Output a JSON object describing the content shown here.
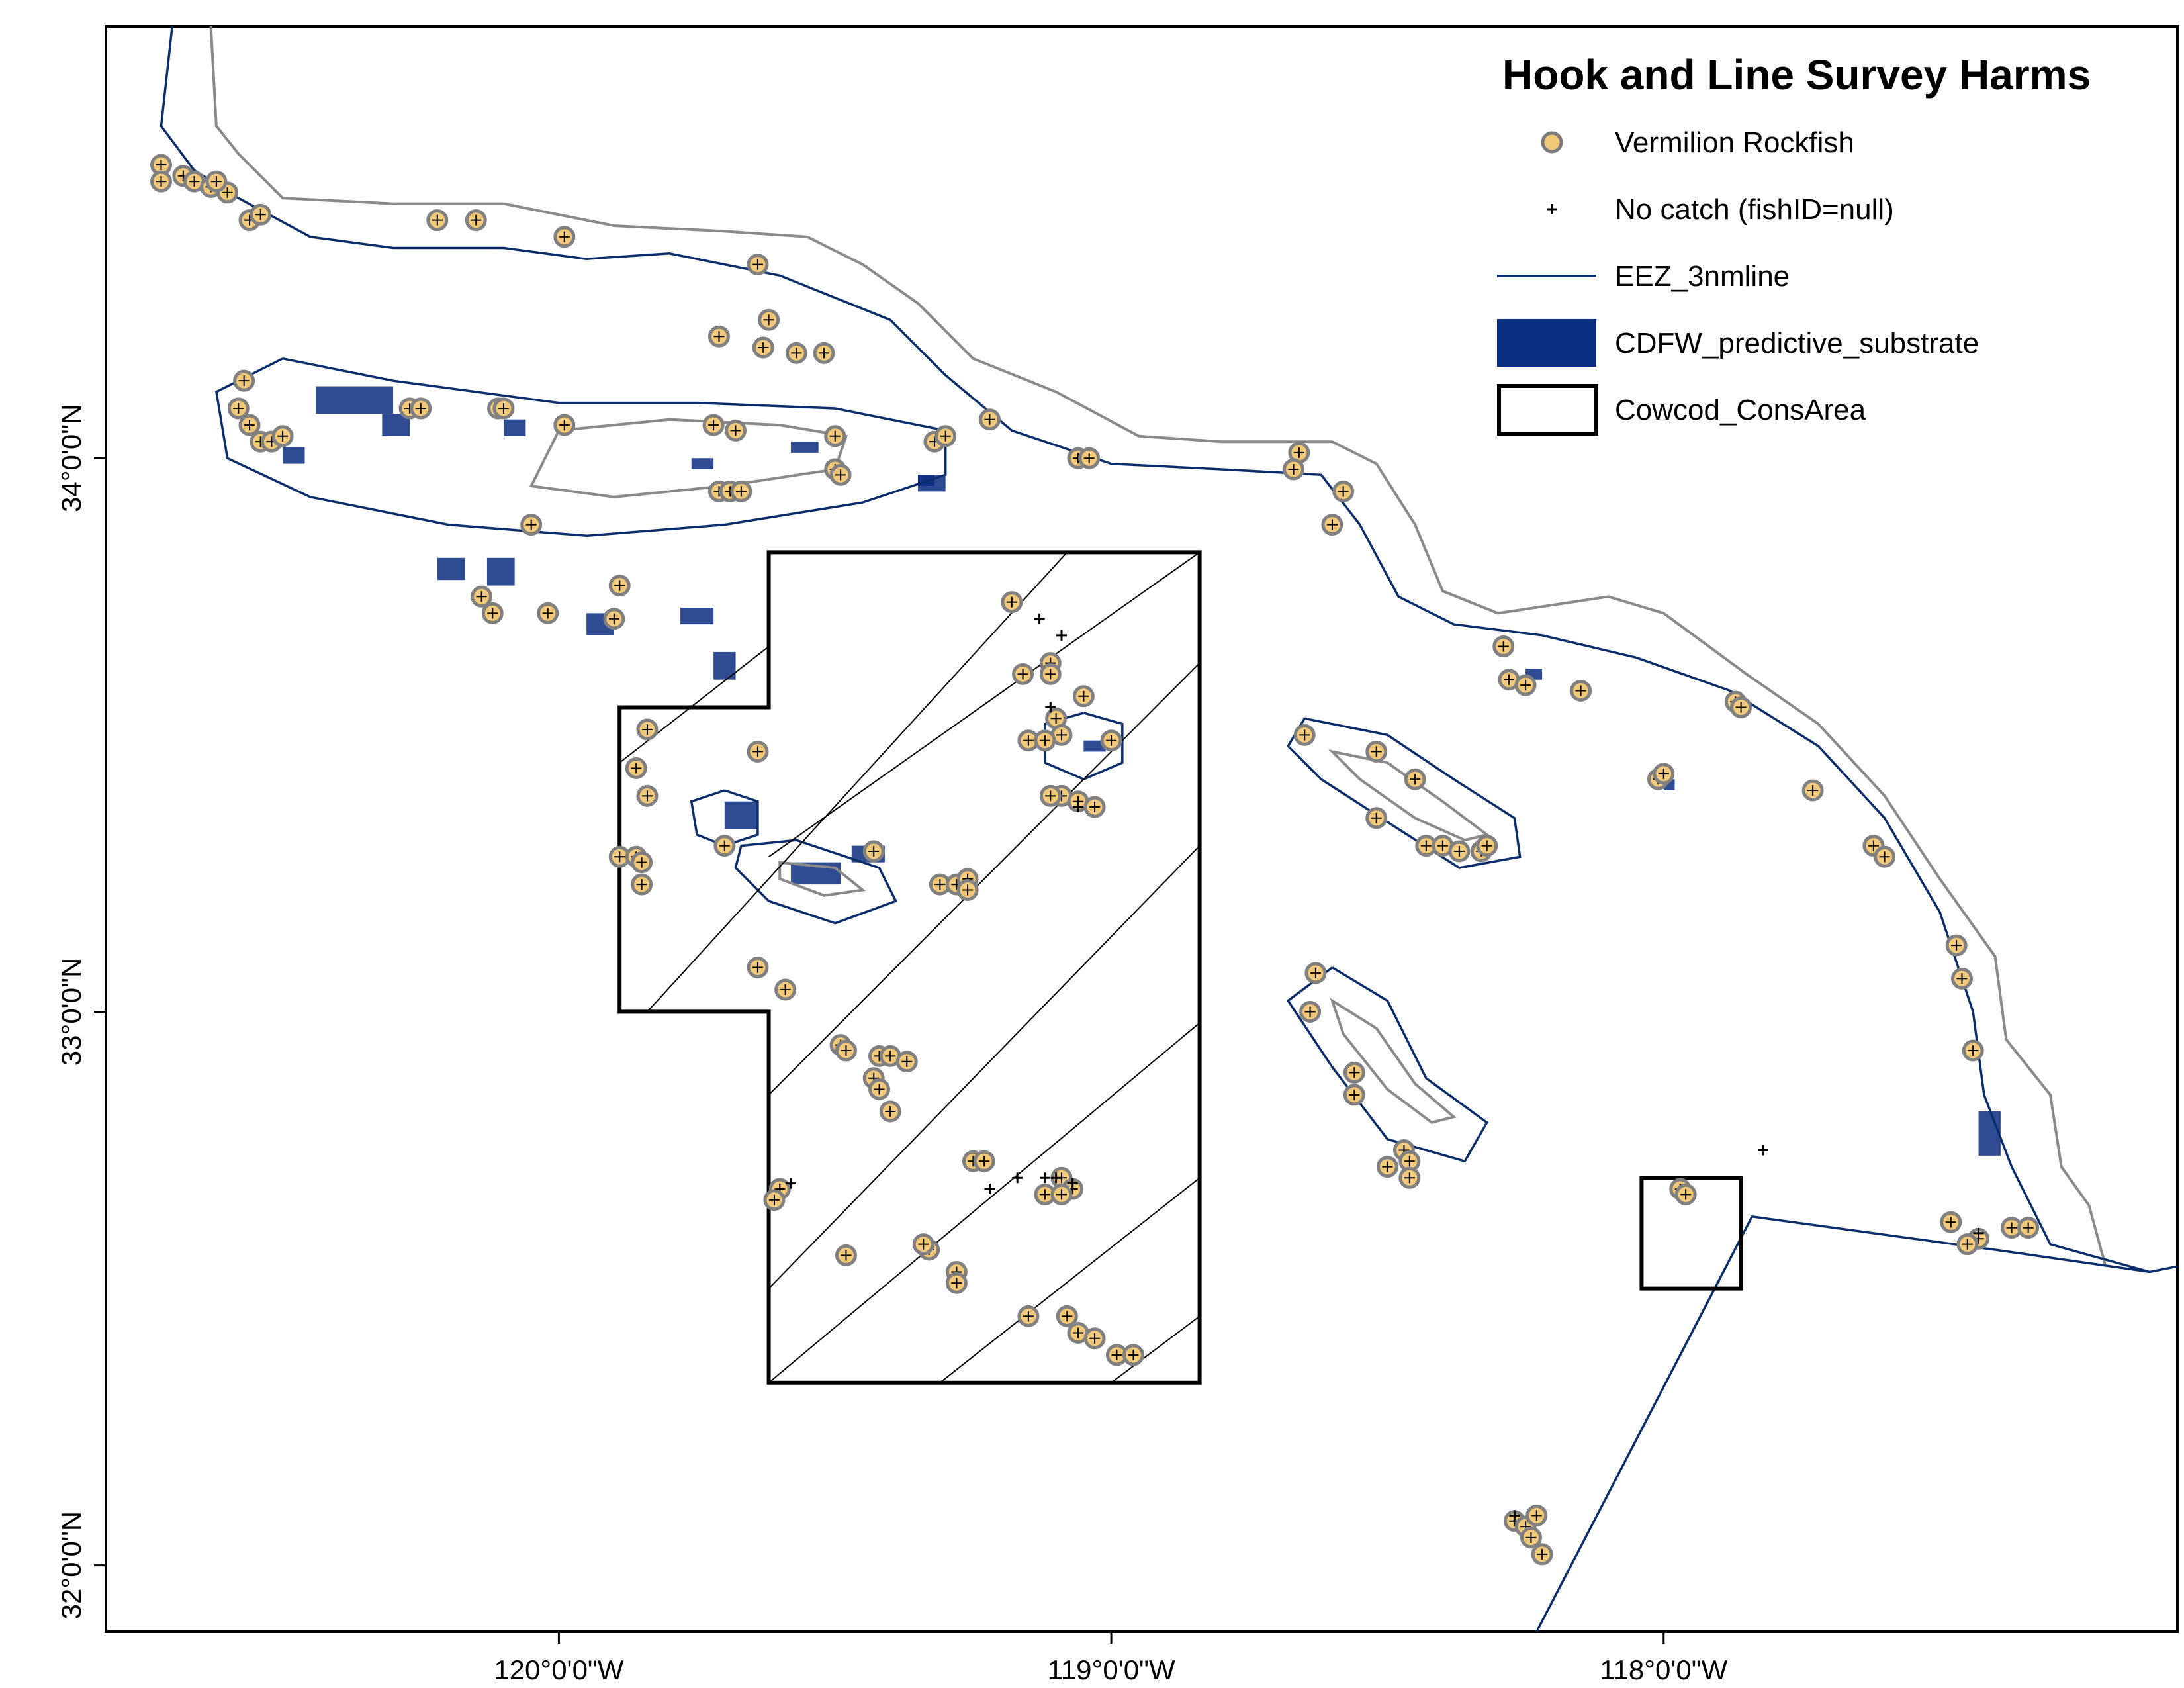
{
  "legend": {
    "title": "Hook and Line Survey Harms",
    "items": [
      {
        "symbol": "circle-marker-icon",
        "label": "Vermilion Rockfish",
        "color": "#F2C879",
        "stroke": "#7a7a7a"
      },
      {
        "symbol": "plus-marker-icon",
        "label": "No catch  (fishID=null)",
        "color": "#000000"
      },
      {
        "symbol": "line-icon",
        "label": "EEZ_3nmline",
        "color": "#0b2d6b"
      },
      {
        "symbol": "filled-rect-icon",
        "label": "CDFW_predictive_substrate",
        "color": "#0b2d80"
      },
      {
        "symbol": "outline-rect-icon",
        "label": "Cowcod_ConsArea",
        "color": "#000000"
      }
    ]
  },
  "axes": {
    "x_ticks": [
      {
        "label": "120°0'0\"W",
        "lon": -120
      },
      {
        "label": "119°0'0\"W",
        "lon": -119
      },
      {
        "label": "118°0'0\"W",
        "lon": -118
      }
    ],
    "y_ticks": [
      {
        "label": "34°0'0\"N",
        "lat": 34
      },
      {
        "label": "33°0'0\"N",
        "lat": 33
      },
      {
        "label": "32°0'0\"N",
        "lat": 32
      }
    ],
    "lon_range": [
      -120.82,
      -117.07
    ],
    "lat_range": [
      31.88,
      34.78
    ]
  },
  "colors": {
    "eez_line": "#0b2d6b",
    "coast_line": "#8a8a8a",
    "substrate": "#0b2d80",
    "cowcod": "#000000",
    "marker_fill": "#F2C879",
    "marker_stroke": "#808080"
  },
  "vermilion_points": [
    [
      -120.72,
      34.53
    ],
    [
      -120.72,
      34.5
    ],
    [
      -120.68,
      34.51
    ],
    [
      -120.66,
      34.5
    ],
    [
      -120.63,
      34.49
    ],
    [
      -120.6,
      34.48
    ],
    [
      -120.62,
      34.5
    ],
    [
      -120.56,
      34.43
    ],
    [
      -120.54,
      34.44
    ],
    [
      -120.22,
      34.43
    ],
    [
      -120.15,
      34.43
    ],
    [
      -119.99,
      34.4
    ],
    [
      -119.64,
      34.35
    ],
    [
      -119.62,
      34.25
    ],
    [
      -119.71,
      34.22
    ],
    [
      -119.57,
      34.19
    ],
    [
      -119.52,
      34.19
    ],
    [
      -119.63,
      34.2
    ],
    [
      -120.57,
      34.14
    ],
    [
      -120.58,
      34.09
    ],
    [
      -120.56,
      34.06
    ],
    [
      -120.54,
      34.03
    ],
    [
      -120.52,
      34.03
    ],
    [
      -120.5,
      34.04
    ],
    [
      -120.27,
      34.09
    ],
    [
      -120.25,
      34.09
    ],
    [
      -120.11,
      34.09
    ],
    [
      -120.1,
      34.09
    ],
    [
      -119.99,
      34.06
    ],
    [
      -119.72,
      34.06
    ],
    [
      -119.68,
      34.05
    ],
    [
      -119.5,
      34.04
    ],
    [
      -119.5,
      33.98
    ],
    [
      -119.49,
      33.97
    ],
    [
      -119.32,
      34.03
    ],
    [
      -119.3,
      34.04
    ],
    [
      -119.22,
      34.07
    ],
    [
      -119.06,
      34.0
    ],
    [
      -119.04,
      34.0
    ],
    [
      -118.66,
      34.01
    ],
    [
      -118.67,
      33.98
    ],
    [
      -118.58,
      33.94
    ],
    [
      -118.6,
      33.88
    ],
    [
      -119.71,
      33.94
    ],
    [
      -119.69,
      33.94
    ],
    [
      -119.67,
      33.94
    ],
    [
      -120.05,
      33.88
    ],
    [
      -120.14,
      33.75
    ],
    [
      -120.12,
      33.72
    ],
    [
      -120.02,
      33.72
    ],
    [
      -119.9,
      33.71
    ],
    [
      -119.89,
      33.77
    ],
    [
      -119.18,
      33.74
    ],
    [
      -119.11,
      33.63
    ],
    [
      -119.11,
      33.61
    ],
    [
      -119.16,
      33.61
    ],
    [
      -119.05,
      33.57
    ],
    [
      -119.1,
      33.53
    ],
    [
      -119.09,
      33.5
    ],
    [
      -119.15,
      33.49
    ],
    [
      -119.12,
      33.49
    ],
    [
      -119.0,
      33.49
    ],
    [
      -119.09,
      33.39
    ],
    [
      -119.06,
      33.38
    ],
    [
      -119.03,
      33.37
    ],
    [
      -119.11,
      33.39
    ],
    [
      -119.64,
      33.47
    ],
    [
      -119.84,
      33.51
    ],
    [
      -119.86,
      33.44
    ],
    [
      -119.84,
      33.39
    ],
    [
      -119.89,
      33.28
    ],
    [
      -119.86,
      33.28
    ],
    [
      -119.85,
      33.27
    ],
    [
      -119.85,
      33.23
    ],
    [
      -119.7,
      33.3
    ],
    [
      -119.43,
      33.29
    ],
    [
      -119.31,
      33.23
    ],
    [
      -119.28,
      33.23
    ],
    [
      -119.26,
      33.24
    ],
    [
      -119.26,
      33.22
    ],
    [
      -119.64,
      33.08
    ],
    [
      -119.59,
      33.04
    ],
    [
      -119.49,
      32.94
    ],
    [
      -119.48,
      32.93
    ],
    [
      -119.42,
      32.92
    ],
    [
      -119.43,
      32.88
    ],
    [
      -119.42,
      32.86
    ],
    [
      -119.4,
      32.92
    ],
    [
      -119.37,
      32.91
    ],
    [
      -119.4,
      32.82
    ],
    [
      -119.25,
      32.73
    ],
    [
      -119.23,
      32.73
    ],
    [
      -119.09,
      32.7
    ],
    [
      -119.07,
      32.68
    ],
    [
      -119.12,
      32.67
    ],
    [
      -119.09,
      32.67
    ],
    [
      -119.6,
      32.68
    ],
    [
      -119.61,
      32.66
    ],
    [
      -119.48,
      32.56
    ],
    [
      -119.33,
      32.57
    ],
    [
      -119.34,
      32.58
    ],
    [
      -119.28,
      32.53
    ],
    [
      -119.28,
      32.51
    ],
    [
      -119.15,
      32.45
    ],
    [
      -119.08,
      32.45
    ],
    [
      -119.06,
      32.42
    ],
    [
      -119.03,
      32.41
    ],
    [
      -118.99,
      32.38
    ],
    [
      -118.96,
      32.38
    ],
    [
      -118.65,
      33.5
    ],
    [
      -118.52,
      33.47
    ],
    [
      -118.45,
      33.42
    ],
    [
      -118.52,
      33.35
    ],
    [
      -118.43,
      33.3
    ],
    [
      -118.4,
      33.3
    ],
    [
      -118.37,
      33.29
    ],
    [
      -118.33,
      33.29
    ],
    [
      -118.32,
      33.3
    ],
    [
      -118.63,
      33.07
    ],
    [
      -118.64,
      33.0
    ],
    [
      -118.56,
      32.89
    ],
    [
      -118.56,
      32.85
    ],
    [
      -118.47,
      32.75
    ],
    [
      -118.46,
      32.73
    ],
    [
      -118.46,
      32.7
    ],
    [
      -118.5,
      32.72
    ],
    [
      -118.29,
      33.66
    ],
    [
      -118.28,
      33.6
    ],
    [
      -118.25,
      33.59
    ],
    [
      -118.15,
      33.58
    ],
    [
      -118.01,
      33.42
    ],
    [
      -118.0,
      33.43
    ],
    [
      -117.87,
      33.56
    ],
    [
      -117.86,
      33.55
    ],
    [
      -117.73,
      33.4
    ],
    [
      -117.62,
      33.3
    ],
    [
      -117.6,
      33.28
    ],
    [
      -117.47,
      33.12
    ],
    [
      -117.46,
      33.06
    ],
    [
      -117.44,
      32.93
    ],
    [
      -117.97,
      32.68
    ],
    [
      -117.96,
      32.67
    ],
    [
      -117.48,
      32.62
    ],
    [
      -117.43,
      32.59
    ],
    [
      -117.45,
      32.58
    ],
    [
      -117.37,
      32.61
    ],
    [
      -117.34,
      32.61
    ],
    [
      -118.27,
      32.08
    ],
    [
      -118.25,
      32.07
    ],
    [
      -118.23,
      32.09
    ],
    [
      -118.24,
      32.05
    ],
    [
      -118.22,
      32.02
    ]
  ],
  "nocatch_points": [
    [
      -119.13,
      33.71
    ],
    [
      -119.09,
      33.68
    ],
    [
      -119.11,
      33.55
    ],
    [
      -119.22,
      32.68
    ],
    [
      -119.17,
      32.7
    ],
    [
      -119.12,
      32.7
    ],
    [
      -119.1,
      32.7
    ],
    [
      -119.07,
      32.69
    ],
    [
      -117.82,
      32.75
    ],
    [
      -119.58,
      32.69
    ],
    [
      -119.06,
      33.37
    ],
    [
      -118.27,
      32.09
    ],
    [
      -117.43,
      32.6
    ]
  ],
  "cowcod_polygons": [
    [
      [
        -119.62,
        33.83
      ],
      [
        -118.84,
        33.83
      ],
      [
        -118.84,
        32.33
      ],
      [
        -119.62,
        32.33
      ],
      [
        -119.62,
        33.0
      ],
      [
        -119.89,
        33.0
      ],
      [
        -119.89,
        33.55
      ],
      [
        -119.62,
        33.55
      ]
    ],
    [
      [
        -118.04,
        32.7
      ],
      [
        -117.86,
        32.7
      ],
      [
        -117.86,
        32.5
      ],
      [
        -118.04,
        32.5
      ]
    ]
  ],
  "eez_paths": {
    "mainland": [
      [
        -120.7,
        34.78
      ],
      [
        -120.72,
        34.6
      ],
      [
        -120.66,
        34.52
      ],
      [
        -120.58,
        34.47
      ],
      [
        -120.45,
        34.4
      ],
      [
        -120.3,
        34.38
      ],
      [
        -120.1,
        34.38
      ],
      [
        -119.95,
        34.36
      ],
      [
        -119.8,
        34.37
      ],
      [
        -119.6,
        34.33
      ],
      [
        -119.4,
        34.25
      ],
      [
        -119.3,
        34.15
      ],
      [
        -119.18,
        34.05
      ],
      [
        -119.0,
        33.99
      ],
      [
        -118.8,
        33.98
      ],
      [
        -118.62,
        33.97
      ],
      [
        -118.55,
        33.88
      ],
      [
        -118.48,
        33.75
      ],
      [
        -118.38,
        33.7
      ],
      [
        -118.22,
        33.68
      ],
      [
        -118.05,
        33.64
      ],
      [
        -117.88,
        33.58
      ],
      [
        -117.72,
        33.48
      ],
      [
        -117.6,
        33.35
      ],
      [
        -117.5,
        33.18
      ],
      [
        -117.44,
        33.0
      ],
      [
        -117.42,
        32.85
      ],
      [
        -117.37,
        32.72
      ],
      [
        -117.3,
        32.58
      ],
      [
        -117.12,
        32.53
      ]
    ],
    "boundary": [
      [
        -118.23,
        31.88
      ],
      [
        -117.84,
        32.63
      ],
      [
        -117.4,
        32.57
      ],
      [
        -117.12,
        32.53
      ],
      [
        -117.07,
        32.54
      ]
    ],
    "northern_islands": [
      [
        -120.5,
        34.18
      ],
      [
        -120.3,
        34.14
      ],
      [
        -120.0,
        34.1
      ],
      [
        -119.75,
        34.1
      ],
      [
        -119.5,
        34.09
      ],
      [
        -119.3,
        34.05
      ],
      [
        -119.3,
        33.97
      ],
      [
        -119.45,
        33.92
      ],
      [
        -119.7,
        33.88
      ],
      [
        -119.95,
        33.86
      ],
      [
        -120.2,
        33.88
      ],
      [
        -120.45,
        33.93
      ],
      [
        -120.6,
        34.0
      ],
      [
        -120.62,
        34.12
      ],
      [
        -120.5,
        34.18
      ]
    ],
    "santa_barbara_island": [
      [
        -119.05,
        33.54
      ],
      [
        -118.98,
        33.52
      ],
      [
        -118.98,
        33.45
      ],
      [
        -119.05,
        33.42
      ],
      [
        -119.12,
        33.45
      ],
      [
        -119.12,
        33.52
      ],
      [
        -119.05,
        33.54
      ]
    ],
    "san_nicolas_outer": [
      [
        -119.67,
        33.3
      ],
      [
        -119.57,
        33.31
      ],
      [
        -119.42,
        33.26
      ],
      [
        -119.39,
        33.2
      ],
      [
        -119.5,
        33.16
      ],
      [
        -119.62,
        33.2
      ],
      [
        -119.68,
        33.26
      ],
      [
        -119.67,
        33.3
      ]
    ],
    "begg_rock": [
      [
        -119.7,
        33.4
      ],
      [
        -119.64,
        33.38
      ],
      [
        -119.64,
        33.32
      ],
      [
        -119.7,
        33.3
      ],
      [
        -119.75,
        33.32
      ],
      [
        -119.76,
        33.38
      ],
      [
        -119.7,
        33.4
      ]
    ],
    "catalina": [
      [
        -118.65,
        33.53
      ],
      [
        -118.5,
        33.5
      ],
      [
        -118.38,
        33.42
      ],
      [
        -118.27,
        33.35
      ],
      [
        -118.26,
        33.28
      ],
      [
        -118.37,
        33.26
      ],
      [
        -118.48,
        33.33
      ],
      [
        -118.62,
        33.42
      ],
      [
        -118.68,
        33.48
      ],
      [
        -118.65,
        33.53
      ]
    ],
    "san_clemente": [
      [
        -118.6,
        33.08
      ],
      [
        -118.5,
        33.02
      ],
      [
        -118.43,
        32.88
      ],
      [
        -118.32,
        32.8
      ],
      [
        -118.36,
        32.73
      ],
      [
        -118.5,
        32.77
      ],
      [
        -118.6,
        32.9
      ],
      [
        -118.68,
        33.02
      ],
      [
        -118.6,
        33.08
      ]
    ]
  },
  "coast_paths": {
    "mainland": [
      [
        -120.63,
        34.78
      ],
      [
        -120.62,
        34.6
      ],
      [
        -120.58,
        34.55
      ],
      [
        -120.5,
        34.47
      ],
      [
        -120.3,
        34.46
      ],
      [
        -120.1,
        34.46
      ],
      [
        -119.9,
        34.42
      ],
      [
        -119.7,
        34.41
      ],
      [
        -119.55,
        34.4
      ],
      [
        -119.45,
        34.35
      ],
      [
        -119.35,
        34.28
      ],
      [
        -119.25,
        34.18
      ],
      [
        -119.1,
        34.12
      ],
      [
        -118.95,
        34.04
      ],
      [
        -118.8,
        34.03
      ],
      [
        -118.6,
        34.03
      ],
      [
        -118.52,
        33.99
      ],
      [
        -118.45,
        33.88
      ],
      [
        -118.4,
        33.76
      ],
      [
        -118.3,
        33.72
      ],
      [
        -118.1,
        33.75
      ],
      [
        -118.0,
        33.72
      ],
      [
        -117.85,
        33.61
      ],
      [
        -117.72,
        33.52
      ],
      [
        -117.6,
        33.39
      ],
      [
        -117.5,
        33.24
      ],
      [
        -117.4,
        33.1
      ],
      [
        -117.38,
        32.95
      ],
      [
        -117.3,
        32.85
      ],
      [
        -117.28,
        32.72
      ],
      [
        -117.23,
        32.65
      ],
      [
        -117.2,
        32.54
      ]
    ],
    "santa_cruz_island": [
      [
        -120.0,
        34.05
      ],
      [
        -119.8,
        34.07
      ],
      [
        -119.6,
        34.06
      ],
      [
        -119.48,
        34.04
      ],
      [
        -119.5,
        33.98
      ],
      [
        -119.7,
        33.95
      ],
      [
        -119.9,
        33.93
      ],
      [
        -120.05,
        33.95
      ],
      [
        -120.0,
        34.05
      ]
    ],
    "san_nicolas": [
      [
        -119.6,
        33.27
      ],
      [
        -119.5,
        33.26
      ],
      [
        -119.45,
        33.22
      ],
      [
        -119.52,
        33.21
      ],
      [
        -119.6,
        33.24
      ],
      [
        -119.6,
        33.27
      ]
    ],
    "catalina": [
      [
        -118.6,
        33.47
      ],
      [
        -118.5,
        33.45
      ],
      [
        -118.4,
        33.38
      ],
      [
        -118.32,
        33.32
      ],
      [
        -118.36,
        33.31
      ],
      [
        -118.45,
        33.35
      ],
      [
        -118.55,
        33.42
      ],
      [
        -118.6,
        33.47
      ]
    ],
    "san_clemente": [
      [
        -118.6,
        33.02
      ],
      [
        -118.52,
        32.97
      ],
      [
        -118.45,
        32.87
      ],
      [
        -118.38,
        32.81
      ],
      [
        -118.42,
        32.8
      ],
      [
        -118.5,
        32.86
      ],
      [
        -118.58,
        32.96
      ],
      [
        -118.6,
        33.02
      ]
    ]
  },
  "substrate_patches": [
    [
      -120.44,
      34.13,
      0.14,
      0.05
    ],
    [
      -120.32,
      34.08,
      0.05,
      0.04
    ],
    [
      -120.1,
      34.07,
      0.04,
      0.03
    ],
    [
      -120.5,
      34.02,
      0.04,
      0.03
    ],
    [
      -119.95,
      33.72,
      0.05,
      0.04
    ],
    [
      -119.78,
      33.73,
      0.06,
      0.03
    ],
    [
      -119.72,
      33.65,
      0.04,
      0.05
    ],
    [
      -120.22,
      33.82,
      0.05,
      0.04
    ],
    [
      -120.13,
      33.82,
      0.05,
      0.05
    ],
    [
      -119.76,
      34.0,
      0.04,
      0.02
    ],
    [
      -119.58,
      34.03,
      0.05,
      0.02
    ],
    [
      -119.35,
      33.97,
      0.05,
      0.03
    ],
    [
      -119.7,
      33.38,
      0.06,
      0.05
    ],
    [
      -119.58,
      33.27,
      0.09,
      0.04
    ],
    [
      -119.47,
      33.3,
      0.06,
      0.03
    ],
    [
      -117.43,
      32.82,
      0.04,
      0.08
    ],
    [
      -118.25,
      33.62,
      0.03,
      0.02
    ],
    [
      -118.0,
      33.42,
      0.02,
      0.02
    ],
    [
      -119.05,
      33.49,
      0.04,
      0.02
    ],
    [
      -119.35,
      33.97,
      0.03,
      0.02
    ]
  ],
  "hatch_lines": [
    [
      [
        -119.89,
        33.45
      ],
      [
        -119.62,
        33.66
      ]
    ],
    [
      [
        -119.84,
        33.0
      ],
      [
        -119.08,
        33.83
      ]
    ],
    [
      [
        -119.62,
        32.85
      ],
      [
        -118.84,
        33.63
      ]
    ],
    [
      [
        -119.62,
        32.5
      ],
      [
        -118.84,
        33.3
      ]
    ],
    [
      [
        -119.62,
        32.33
      ],
      [
        -118.84,
        32.98
      ]
    ],
    [
      [
        -119.31,
        32.33
      ],
      [
        -118.84,
        32.7
      ]
    ],
    [
      [
        -119.0,
        32.33
      ],
      [
        -118.84,
        32.45
      ]
    ],
    [
      [
        -119.62,
        33.28
      ],
      [
        -118.84,
        33.83
      ]
    ]
  ]
}
